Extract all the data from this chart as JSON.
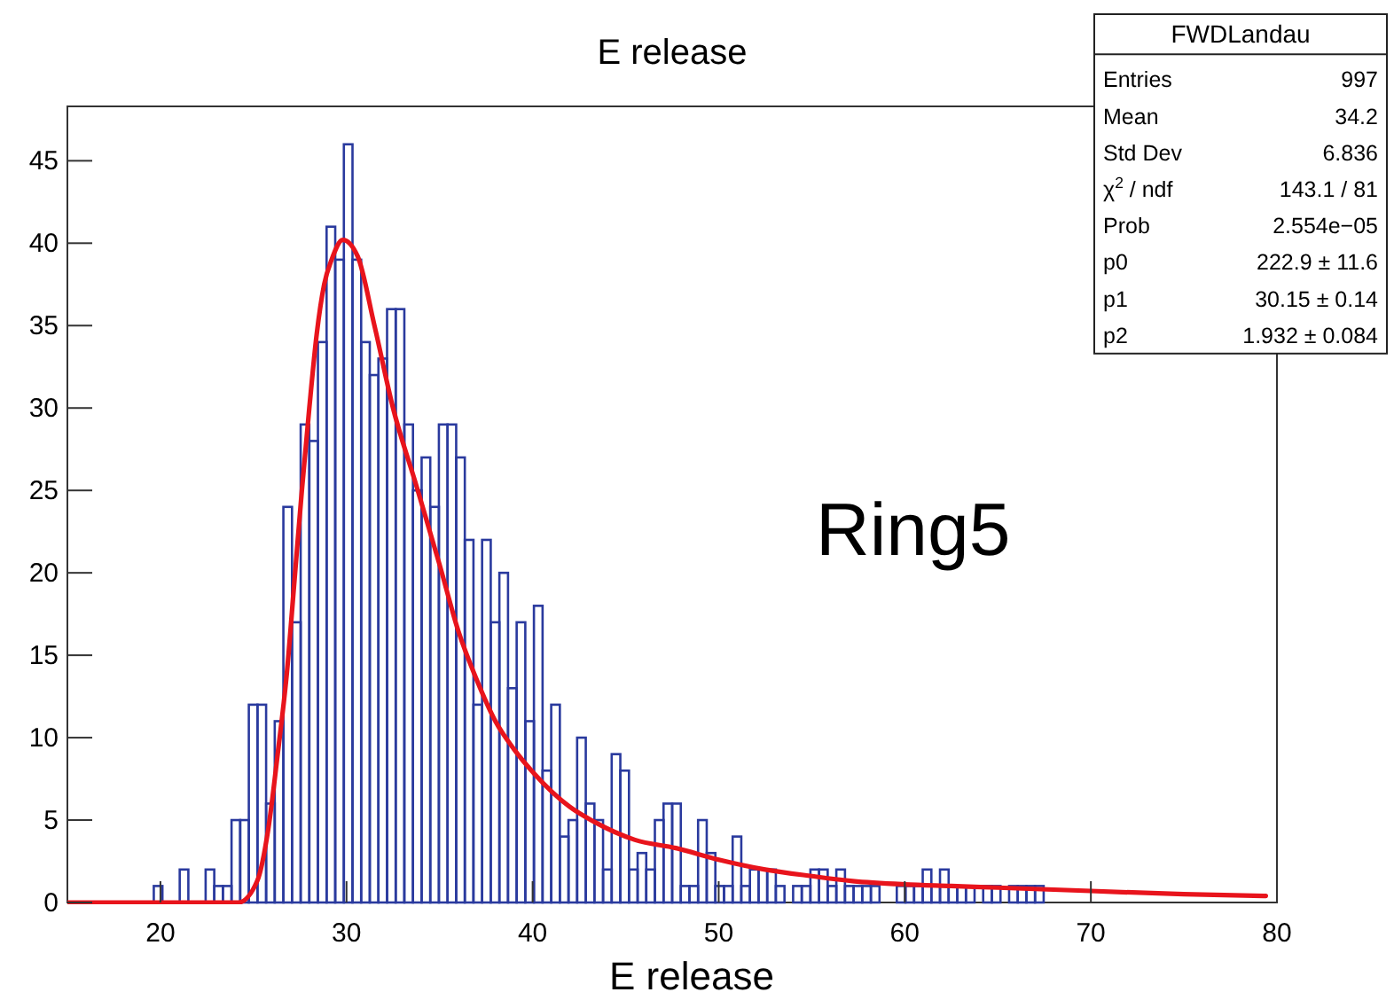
{
  "chart_data": {
    "type": "histogram",
    "title": "E release",
    "xlabel": "E release",
    "color": "#2a3a9e",
    "bins": [
      15,
      15.464,
      15.929,
      16.393,
      16.857,
      17.321,
      17.786,
      18.25,
      18.714,
      19.179,
      19.643,
      20.107,
      20.571,
      21.036,
      21.5,
      21.964,
      22.429,
      22.893,
      23.357,
      23.821,
      24.286,
      24.75,
      25.214,
      25.679,
      26.143,
      26.607,
      27.071,
      27.536,
      28,
      28.464,
      28.929,
      29.393,
      29.857,
      30.321,
      30.786,
      31.25,
      31.714,
      32.179,
      32.643,
      33.107,
      33.571,
      34.036,
      34.5,
      34.964,
      35.429,
      35.893,
      36.357,
      36.821,
      37.286,
      37.75,
      38.214,
      38.679,
      39.143,
      39.607,
      40.071,
      40.536,
      41,
      41.464,
      41.929,
      42.393,
      42.857,
      43.321,
      43.786,
      44.25,
      44.714,
      45.179,
      45.643,
      46.107,
      46.571,
      47.036,
      47.5,
      47.964,
      48.429,
      48.893,
      49.357,
      49.821,
      50.286,
      50.75,
      51.214,
      51.679,
      52.143,
      52.607,
      53.071,
      53.536,
      54,
      54.464,
      54.929,
      55.393,
      55.857,
      56.321,
      56.786,
      57.25,
      57.714,
      58.179,
      58.643,
      59.107,
      59.571,
      60.036,
      60.5,
      60.964,
      61.429,
      61.893,
      62.357,
      62.821,
      63.286,
      63.75,
      64.214,
      64.679,
      65.143,
      65.607,
      66.071,
      66.536,
      67,
      67.464,
      67.929,
      68.393,
      68.857,
      69.321,
      69.786,
      70.25,
      70.714,
      71.179,
      71.643,
      72.107,
      72.571,
      73.036,
      73.5,
      73.964,
      74.429,
      74.893,
      75.357,
      75.821,
      76.286,
      76.75,
      77.214,
      77.679,
      78.143,
      78.607,
      79.071,
      79.536,
      80
    ],
    "values": [
      0,
      0,
      0,
      0,
      0,
      0,
      0,
      0,
      0,
      0,
      1,
      0,
      0,
      2,
      0,
      0,
      2,
      1,
      1,
      5,
      5,
      12,
      12,
      6,
      11,
      24,
      17,
      29,
      28,
      34,
      41,
      39,
      46,
      39,
      34,
      32,
      33,
      36,
      36,
      29,
      25,
      27,
      24,
      29,
      29,
      27,
      22,
      12,
      22,
      17,
      20,
      13,
      17,
      11,
      18,
      8,
      12,
      4,
      5,
      10,
      6,
      5,
      2,
      9,
      8,
      2,
      3,
      2,
      5,
      6,
      6,
      1,
      1,
      5,
      3,
      1,
      1,
      4,
      1,
      2,
      2,
      2,
      1,
      0,
      1,
      1,
      2,
      2,
      1,
      2,
      1,
      1,
      1,
      1,
      0,
      0,
      1,
      1,
      1,
      2,
      1,
      2,
      1,
      1,
      1,
      0,
      1,
      1,
      0,
      1,
      1,
      1,
      1,
      0,
      0,
      0,
      0,
      0,
      0,
      0,
      0,
      0,
      0,
      0,
      0,
      0,
      0,
      0,
      0,
      0,
      0,
      0,
      0,
      0,
      0,
      0,
      0,
      0,
      0,
      0
    ],
    "series": [
      {
        "type": "line",
        "color": "#e8141c",
        "x": [
          15,
          24.2,
          25.2,
          25.8,
          26.3,
          26.8,
          27.2,
          27.6,
          28,
          28.4,
          28.8,
          29.2,
          29.8,
          30.6,
          31.5,
          32.5,
          33.75,
          35,
          36,
          37,
          38,
          39,
          40.1,
          42,
          43.3,
          45.5,
          47.7,
          50,
          52.5,
          55,
          57.2,
          60,
          62.5,
          65,
          70,
          75,
          79.4
        ],
        "values": [
          0,
          0,
          1.3,
          4.5,
          9,
          14,
          19.5,
          25,
          30,
          34.5,
          37.5,
          39,
          40.2,
          39.2,
          35,
          30,
          25.3,
          20.5,
          16.5,
          13.5,
          11,
          9.3,
          7.8,
          5.8,
          4.9,
          3.8,
          3.3,
          2.6,
          2,
          1.6,
          1.3,
          1.1,
          1,
          0.9,
          0.7,
          0.5,
          0.4
        ]
      }
    ],
    "xlim": [
      15,
      80
    ],
    "xticks": [
      20,
      30,
      40,
      50,
      60,
      70,
      80
    ],
    "ylim": [
      0,
      48.3
    ],
    "yticks": [
      0,
      5,
      10,
      15,
      20,
      25,
      30,
      35,
      40,
      45
    ],
    "annotations": [
      "FWDLandau",
      "Entries\t997",
      "Mean\t34.2",
      "Std Dev\t6.836",
      "χ$^{2}$ / ndf\t143.1 / 81",
      "Prob\t2.554e−05",
      "p0\t222.9 ± 11.6",
      "p1\t30.15 ± 0.14",
      "p2\t1.932 ± 0.084",
      "Ring5"
    ]
  }
}
